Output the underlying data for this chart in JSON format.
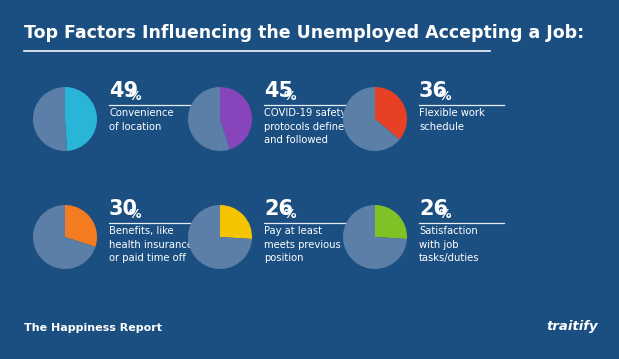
{
  "title": "Top Factors Influencing the Unemployed Accepting a Job:",
  "background_color": "#1b4f82",
  "title_color": "#ffffff",
  "text_color": "#ffffff",
  "subtitle_left": "The Happiness Report",
  "subtitle_right": "traitify",
  "pie_bg_color": "#5b7fa6",
  "charts": [
    {
      "pct": 49,
      "label": "Convenience\nof location",
      "highlight_color": "#29b5d8",
      "row": 0,
      "col": 0
    },
    {
      "pct": 45,
      "label": "COVID-19 safety\nprotocols defined\nand followed",
      "highlight_color": "#8844bb",
      "row": 0,
      "col": 1
    },
    {
      "pct": 36,
      "label": "Flexible work\nschedule",
      "highlight_color": "#e84025",
      "row": 0,
      "col": 2
    },
    {
      "pct": 30,
      "label": "Benefits, like\nhealth insurance\nor paid time off",
      "highlight_color": "#f47b20",
      "row": 1,
      "col": 0
    },
    {
      "pct": 26,
      "label": "Pay at least\nmeets previous\nposition",
      "highlight_color": "#f5c400",
      "row": 1,
      "col": 1
    },
    {
      "pct": 26,
      "label": "Satisfaction\nwith job\ntasks/duties",
      "highlight_color": "#7ec225",
      "row": 1,
      "col": 2
    }
  ]
}
